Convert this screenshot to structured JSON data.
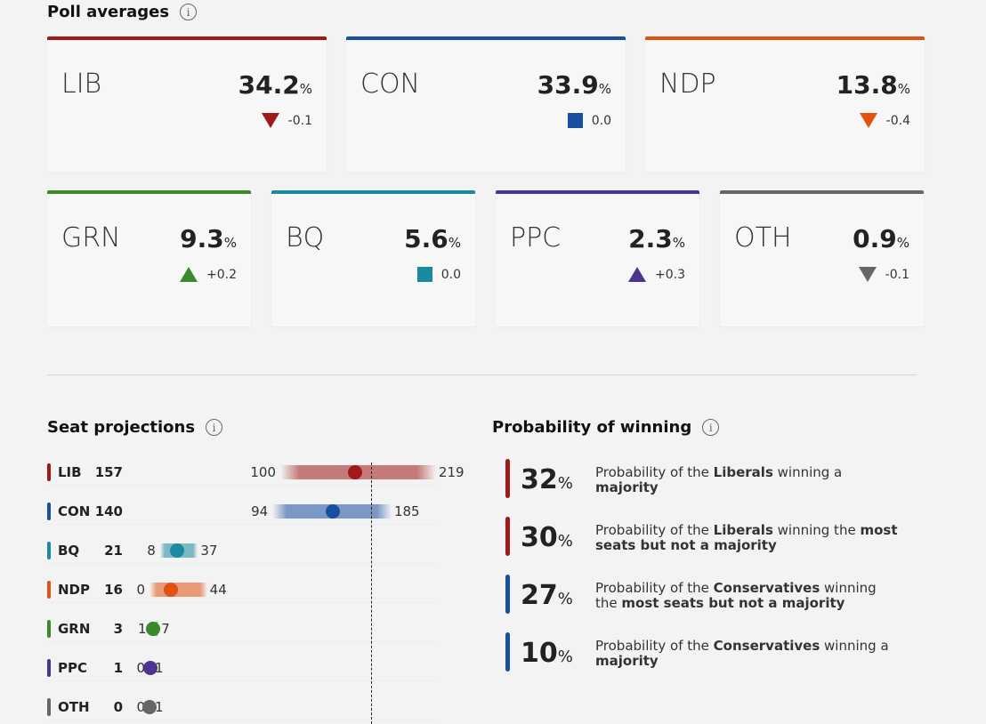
{
  "poll": {
    "title": "Poll averages",
    "cards": [
      {
        "party": "LIB",
        "value": "34.2",
        "unit": "%",
        "change": "-0.1",
        "dir": "down",
        "color": "#a01818"
      },
      {
        "party": "CON",
        "value": "33.9",
        "unit": "%",
        "change": "0.0",
        "dir": "flat",
        "color": "#1a4fa0"
      },
      {
        "party": "NDP",
        "value": "13.8",
        "unit": "%",
        "change": "-0.4",
        "dir": "down",
        "color": "#e0520f"
      },
      {
        "party": "GRN",
        "value": "9.3",
        "unit": "%",
        "change": "+0.2",
        "dir": "up",
        "color": "#3a8a2c"
      },
      {
        "party": "BQ",
        "value": "5.6",
        "unit": "%",
        "change": "0.0",
        "dir": "flat",
        "color": "#1a8aa0"
      },
      {
        "party": "PPC",
        "value": "2.3",
        "unit": "%",
        "change": "+0.3",
        "dir": "up",
        "color": "#4b3591"
      },
      {
        "party": "OTH",
        "value": "0.9",
        "unit": "%",
        "change": "-0.1",
        "dir": "down",
        "color": "#666666"
      }
    ]
  },
  "seats": {
    "title": "Seat projections",
    "majority": 170,
    "rows": [
      {
        "party": "LIB",
        "seats": "157",
        "low": "100",
        "high": "219",
        "color": "#a01818"
      },
      {
        "party": "CON",
        "seats": "140",
        "low": "94",
        "high": "185",
        "color": "#1a4fa0"
      },
      {
        "party": "BQ",
        "seats": "21",
        "low": "8",
        "high": "37",
        "color": "#1a8aa0"
      },
      {
        "party": "NDP",
        "seats": "16",
        "low": "0",
        "high": "44",
        "color": "#e0520f"
      },
      {
        "party": "GRN",
        "seats": "3",
        "low": "1",
        "high": "7",
        "color": "#3a8a2c"
      },
      {
        "party": "PPC",
        "seats": "1",
        "low": "0",
        "high": "1",
        "color": "#4b3591"
      },
      {
        "party": "OTH",
        "seats": "0",
        "low": "0",
        "high": "1",
        "color": "#666666"
      }
    ]
  },
  "prob": {
    "title": "Probability of winning",
    "items": [
      {
        "pct": "32",
        "unit": "%",
        "pre": "Probability of the ",
        "party": "Liberals",
        "mid": " winning a ",
        "bold": "majority",
        "color": "#a01818"
      },
      {
        "pct": "30",
        "unit": "%",
        "pre": "Probability of the ",
        "party": "Liberals",
        "mid": " winning the ",
        "bold": "most seats but not a majority",
        "color": "#a01818"
      },
      {
        "pct": "27",
        "unit": "%",
        "pre": "Probability of the ",
        "party": "Conservatives",
        "mid": " winning the ",
        "bold": "most seats but not a majority",
        "color": "#1a4fa0"
      },
      {
        "pct": "10",
        "unit": "%",
        "pre": "Probability of the ",
        "party": "Conservatives",
        "mid": " winning a ",
        "bold": "majority",
        "color": "#1a4fa0"
      }
    ]
  }
}
